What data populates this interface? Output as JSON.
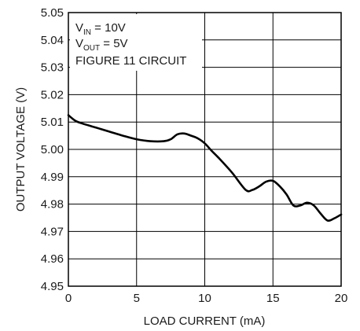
{
  "chart_data": {
    "type": "line",
    "xlabel": "LOAD CURRENT (mA)",
    "ylabel": "OUTPUT VOLTAGE (V)",
    "xlim": [
      0,
      20
    ],
    "ylim": [
      4.95,
      5.05
    ],
    "x_ticks": [
      "0",
      "5",
      "10",
      "15",
      "20"
    ],
    "y_ticks": [
      "4.95",
      "4.96",
      "4.97",
      "4.98",
      "4.99",
      "5.00",
      "5.01",
      "5.02",
      "5.03",
      "5.04",
      "5.05"
    ],
    "grid": true,
    "annotations": [
      {
        "main": "V",
        "sub": "IN",
        "rest": " = 10V"
      },
      {
        "main": "V",
        "sub": "OUT",
        "rest": " = 5V"
      },
      {
        "main": "FIGURE 11 CIRCUIT",
        "sub": "",
        "rest": ""
      }
    ],
    "series": [
      {
        "x": [
          0,
          0.5,
          1,
          2,
          3,
          4,
          5,
          6,
          7,
          7.5,
          8,
          8.5,
          9,
          9.5,
          10,
          10.5,
          11,
          12,
          13,
          13.5,
          14,
          14.5,
          15,
          15.5,
          16,
          16.5,
          17,
          17.5,
          18,
          18.5,
          19,
          19.5,
          20
        ],
        "y": [
          5.0125,
          5.0105,
          5.0095,
          5.008,
          5.0065,
          5.005,
          5.0037,
          5.003,
          5.003,
          5.0037,
          5.0055,
          5.0058,
          5.005,
          5.004,
          5.0022,
          4.9995,
          4.997,
          4.9915,
          4.9852,
          4.9852,
          4.9865,
          4.9882,
          4.9885,
          4.9865,
          4.9835,
          4.9795,
          4.9795,
          4.9805,
          4.9795,
          4.9765,
          4.974,
          4.9748,
          4.9762
        ],
        "color": "#000000"
      }
    ]
  }
}
